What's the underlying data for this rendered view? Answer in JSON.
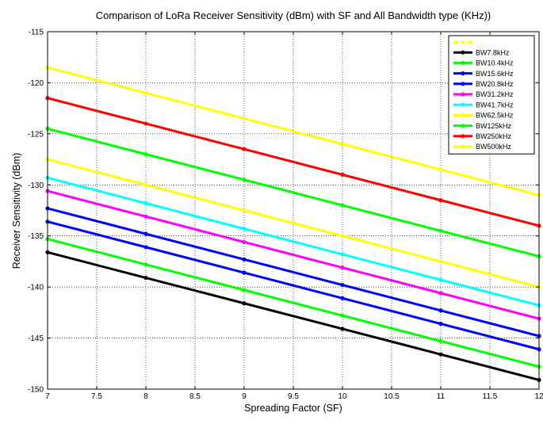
{
  "chart_data": {
    "type": "line",
    "title": "Comparison of LoRa Receiver Sensitivity (dBm) with SF and All Bandwidth type (KHz))",
    "xlabel": "Spreading Factor (SF)",
    "ylabel": "Receiver Sensitivity (dBm)",
    "xlim": [
      7,
      12
    ],
    "ylim": [
      -150,
      -115
    ],
    "xticks": [
      7,
      7.5,
      8,
      8.5,
      9,
      9.5,
      10,
      10.5,
      11,
      11.5,
      12
    ],
    "yticks": [
      -115,
      -120,
      -125,
      -130,
      -135,
      -140,
      -145,
      -150
    ],
    "grid": true,
    "legend_position": "top-right",
    "x": [
      7,
      8,
      9,
      10,
      11,
      12
    ],
    "series": [
      {
        "name": "BW7.8kHz",
        "color": "#000000",
        "values": [
          -136.6,
          -139.1,
          -141.6,
          -144.1,
          -146.6,
          -149.1
        ]
      },
      {
        "name": "BW10.4kHz",
        "color": "#00ff00",
        "values": [
          -135.3,
          -137.8,
          -140.3,
          -142.8,
          -145.3,
          -147.8
        ]
      },
      {
        "name": "BW15.6kHz",
        "color": "#0000ff",
        "values": [
          -133.6,
          -136.1,
          -138.6,
          -141.1,
          -143.6,
          -146.1
        ]
      },
      {
        "name": "BW20.8kHz",
        "color": "#0000ff",
        "values": [
          -132.3,
          -134.8,
          -137.3,
          -139.8,
          -142.3,
          -144.8
        ]
      },
      {
        "name": "BW31.2kHz",
        "color": "#ff00ff",
        "values": [
          -130.6,
          -133.1,
          -135.6,
          -138.1,
          -140.6,
          -143.1
        ]
      },
      {
        "name": "BW41.7kHz",
        "color": "#00ffff",
        "values": [
          -129.3,
          -131.8,
          -134.3,
          -136.8,
          -139.3,
          -141.8
        ]
      },
      {
        "name": "BW62.5kHz",
        "color": "#ffff00",
        "values": [
          -127.5,
          -130.0,
          -132.5,
          -135.0,
          -137.5,
          -140.0
        ]
      },
      {
        "name": "BW125kHz",
        "color": "#00ff00",
        "values": [
          -124.5,
          -127.0,
          -129.5,
          -132.0,
          -134.5,
          -137.0
        ]
      },
      {
        "name": "BW250kHz",
        "color": "#ff0000",
        "values": [
          -121.5,
          -124.0,
          -126.5,
          -129.0,
          -131.5,
          -134.0
        ]
      },
      {
        "name": "BW500kHz",
        "color": "#ffff00",
        "values": [
          -118.5,
          -121.0,
          -123.5,
          -126.0,
          -128.5,
          -131.0
        ]
      }
    ],
    "legend_extra_entry_color": "#ffff00"
  }
}
